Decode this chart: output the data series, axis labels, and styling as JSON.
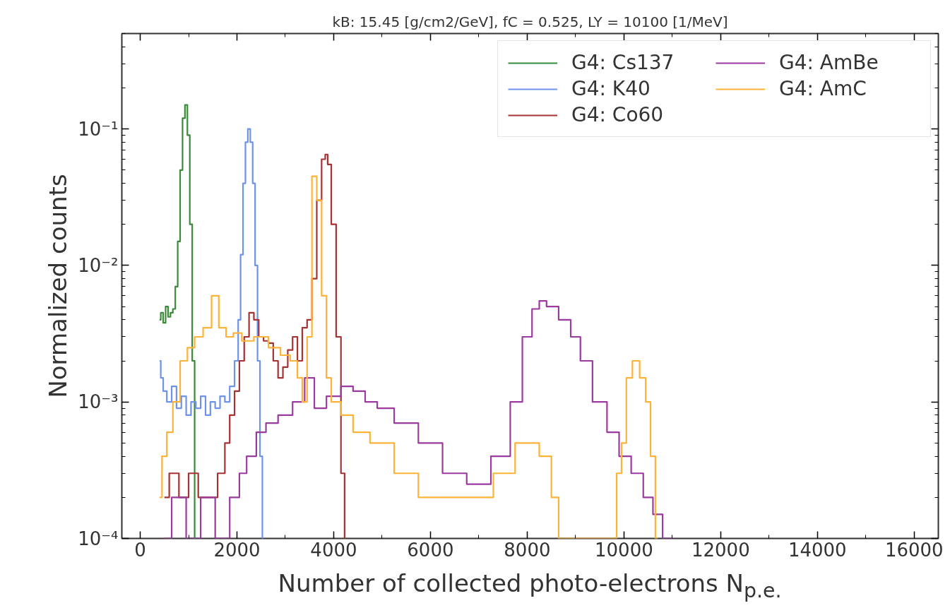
{
  "chart_data": {
    "type": "step",
    "title": "kB: 15.45 [g/cm2/GeV], fC = 0.525, LY = 10100 [1/MeV]",
    "xlabel": "Number of collected photo-electrons N$_{p.e.}$",
    "ylabel": "Normalized counts",
    "log": "y",
    "xlim": [
      -380,
      16500
    ],
    "ylim": [
      0.0001,
      0.5
    ],
    "xticks": [
      0,
      2000,
      4000,
      6000,
      8000,
      10000,
      12000,
      14000,
      16000
    ],
    "yticks": [
      {
        "value": 0.0001,
        "label": "10⁻⁴"
      },
      {
        "value": 0.001,
        "label": "10⁻³"
      },
      {
        "value": 0.01,
        "label": "10⁻²"
      },
      {
        "value": 0.1,
        "label": "10⁻¹"
      }
    ],
    "grid": false,
    "legend": "top right",
    "marker": "none",
    "line_style": "solid",
    "series": [
      {
        "name": "G4: Cs137",
        "color": "#3a8a3a",
        "x": [
          400,
          450,
          500,
          550,
          600,
          650,
          700,
          750,
          800,
          850,
          900,
          950,
          1000,
          1050,
          1100,
          1150
        ],
        "values": [
          0.004,
          0.0045,
          0.0038,
          0.005,
          0.0042,
          0.0045,
          0.0048,
          0.007,
          0.015,
          0.05,
          0.12,
          0.15,
          0.09,
          0.02,
          0.002,
          0.0001
        ]
      },
      {
        "name": "G4: K40",
        "color": "#6e93e8",
        "x": [
          400,
          450,
          500,
          600,
          700,
          800,
          900,
          1000,
          1100,
          1200,
          1300,
          1400,
          1500,
          1600,
          1700,
          1800,
          1900,
          2000,
          2050,
          2100,
          2150,
          2200,
          2250,
          2300,
          2350,
          2400,
          2450,
          2500,
          2550
        ],
        "values": [
          0.002,
          0.0015,
          0.0012,
          0.001,
          0.0013,
          0.0009,
          0.0011,
          0.0008,
          0.001,
          0.0009,
          0.0011,
          0.0008,
          0.001,
          0.0009,
          0.0011,
          0.001,
          0.0013,
          0.002,
          0.004,
          0.012,
          0.04,
          0.08,
          0.1,
          0.08,
          0.04,
          0.01,
          0.002,
          0.0004,
          0.0001
        ]
      },
      {
        "name": "G4: Co60",
        "color": "#a83232",
        "x": [
          500,
          700,
          900,
          1100,
          1300,
          1500,
          1700,
          1800,
          1900,
          2000,
          2100,
          2200,
          2300,
          2400,
          2500,
          2600,
          2700,
          2800,
          2900,
          3000,
          3100,
          3200,
          3300,
          3400,
          3500,
          3600,
          3700,
          3800,
          3850,
          3900,
          4000,
          4100,
          4200,
          4250
        ],
        "values": [
          0.0002,
          0.0003,
          0.0002,
          0.0003,
          0.0002,
          0.0002,
          0.0003,
          0.0005,
          0.0008,
          0.0012,
          0.002,
          0.003,
          0.0045,
          0.004,
          0.003,
          0.0028,
          0.0027,
          0.002,
          0.0015,
          0.0018,
          0.0024,
          0.003,
          0.002,
          0.0035,
          0.004,
          0.008,
          0.03,
          0.06,
          0.065,
          0.055,
          0.02,
          0.003,
          0.0003,
          0.0001
        ]
      },
      {
        "name": "G4: AmBe",
        "color": "#9b3a9f",
        "x": [
          500,
          800,
          1100,
          1400,
          1700,
          2000,
          2100,
          2300,
          2500,
          2700,
          3000,
          3300,
          3500,
          3700,
          4000,
          4300,
          4500,
          4800,
          5000,
          5500,
          6000,
          6500,
          7000,
          7500,
          7800,
          8000,
          8200,
          8300,
          8500,
          8800,
          9000,
          9200,
          9500,
          9800,
          10000,
          10300,
          10500,
          10700,
          10900,
          11000
        ],
        "values": [
          0.0001,
          0.0002,
          0.0001,
          0.0002,
          0.0001,
          0.0002,
          0.0003,
          0.0004,
          0.0006,
          0.0007,
          0.0008,
          0.001,
          0.0015,
          0.0009,
          0.0011,
          0.0013,
          0.0012,
          0.001,
          0.0009,
          0.0007,
          0.0005,
          0.0003,
          0.00025,
          0.0004,
          0.001,
          0.003,
          0.0048,
          0.0055,
          0.005,
          0.004,
          0.003,
          0.002,
          0.001,
          0.0006,
          0.0004,
          0.0003,
          0.0002,
          0.00015,
          0.0001,
          0.0001
        ]
      },
      {
        "name": "G4: AmC",
        "color": "#fdb338",
        "x": [
          400,
          500,
          600,
          750,
          900,
          1050,
          1200,
          1400,
          1550,
          1700,
          1850,
          2000,
          2200,
          2500,
          2800,
          3000,
          3200,
          3300,
          3400,
          3500,
          3600,
          3700,
          3800,
          3900,
          4000,
          4300,
          4500,
          5000,
          5500,
          6000,
          6500,
          7000,
          7600,
          7900,
          8100,
          8400,
          8600,
          8700,
          9800,
          9900,
          10000,
          10100,
          10250,
          10400,
          10500,
          10600,
          10700
        ],
        "values": [
          0.0002,
          0.0004,
          0.0006,
          0.001,
          0.002,
          0.0025,
          0.003,
          0.0035,
          0.006,
          0.0035,
          0.003,
          0.0032,
          0.0028,
          0.003,
          0.0025,
          0.0022,
          0.002,
          0.0015,
          0.001,
          0.003,
          0.045,
          0.03,
          0.006,
          0.0015,
          0.001,
          0.0008,
          0.0006,
          0.0005,
          0.0003,
          0.0002,
          0.0002,
          0.0002,
          0.0003,
          0.0005,
          0.0005,
          0.0004,
          0.0002,
          0.0001,
          0.0001,
          0.0003,
          0.0005,
          0.0015,
          0.002,
          0.0015,
          0.001,
          0.0004,
          0.0001
        ]
      }
    ]
  }
}
